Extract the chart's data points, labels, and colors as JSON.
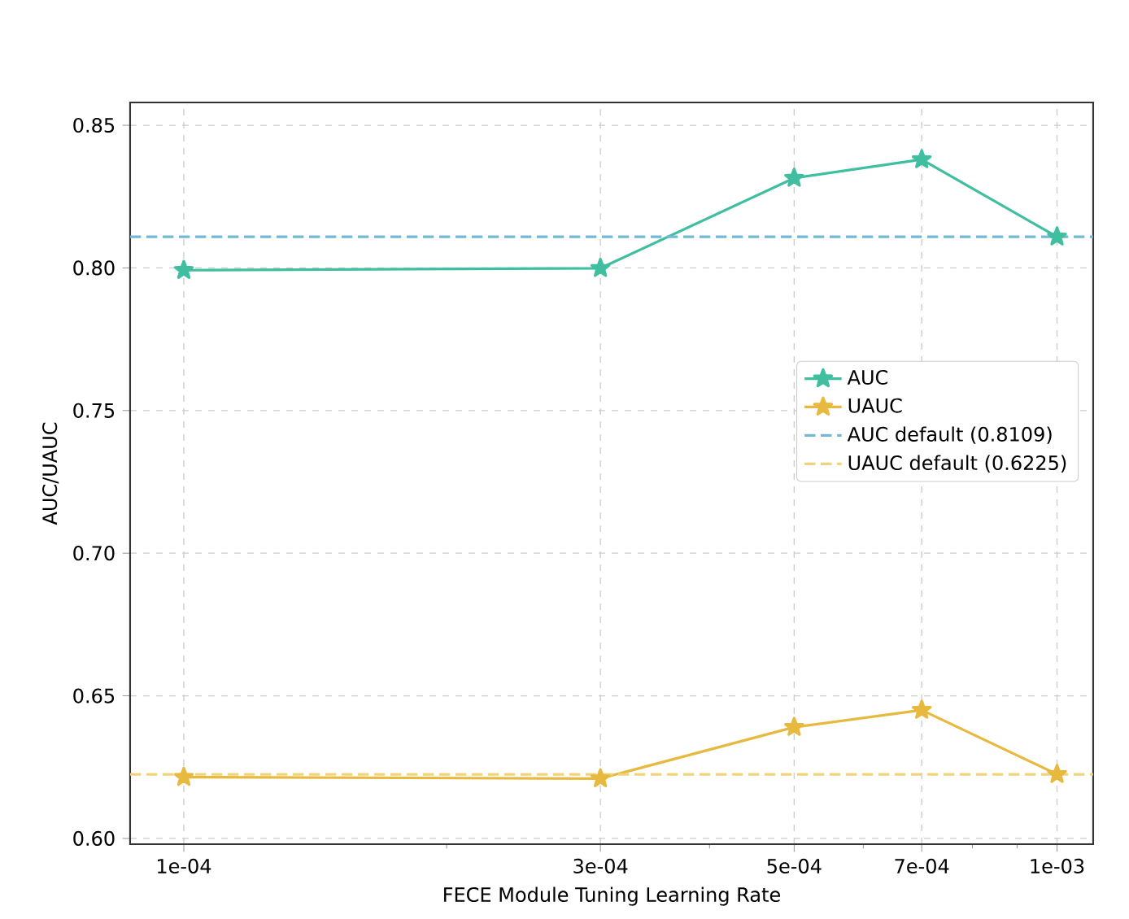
{
  "chart_data": {
    "type": "line",
    "xlabel": "FECE Module Tuning Learning Rate",
    "ylabel": "AUC/UAUC",
    "x": [
      0.0001,
      0.0003,
      0.0005,
      0.0007,
      0.001
    ],
    "series": [
      {
        "name": "AUC",
        "color": "#3fbf9f",
        "values": [
          0.7992,
          0.7999,
          0.8315,
          0.838,
          0.8109
        ]
      },
      {
        "name": "UAUC",
        "color": "#e8b93f",
        "values": [
          0.6215,
          0.621,
          0.639,
          0.645,
          0.6225
        ]
      }
    ],
    "ref_lines": [
      {
        "axis": "y",
        "value": 0.8109,
        "label": "AUC default (0.8109)",
        "color": "#74b8d6",
        "line_style": "dashed"
      },
      {
        "axis": "y",
        "value": 0.6225,
        "label": "UAUC default (0.6225)",
        "color": "#f0d27a",
        "line_style": "dashed"
      }
    ],
    "log": "x",
    "xlim": [
      8.68e-05,
      0.0011
    ],
    "xticks": [
      {
        "value": 0.0001,
        "label": "1e-04"
      },
      {
        "value": 0.0002,
        "label": null
      },
      {
        "value": 0.0003,
        "label": "3e-04"
      },
      {
        "value": 0.0004,
        "label": null
      },
      {
        "value": 0.0005,
        "label": "5e-04"
      },
      {
        "value": 0.0006,
        "label": null
      },
      {
        "value": 0.0007,
        "label": "7e-04"
      },
      {
        "value": 0.0008,
        "label": null
      },
      {
        "value": 0.0009,
        "label": null
      },
      {
        "value": 0.001,
        "label": "1e-03"
      }
    ],
    "ylim": [
      0.598,
      0.858
    ],
    "yticks": [
      {
        "value": 0.6,
        "label": "0.60"
      },
      0.65,
      {
        "value": 0.7,
        "label": "0.70"
      },
      0.75,
      {
        "value": 0.8,
        "label": "0.80"
      },
      0.85
    ],
    "grid": true,
    "legend": "right",
    "marker": "star",
    "line_style": "solid"
  }
}
